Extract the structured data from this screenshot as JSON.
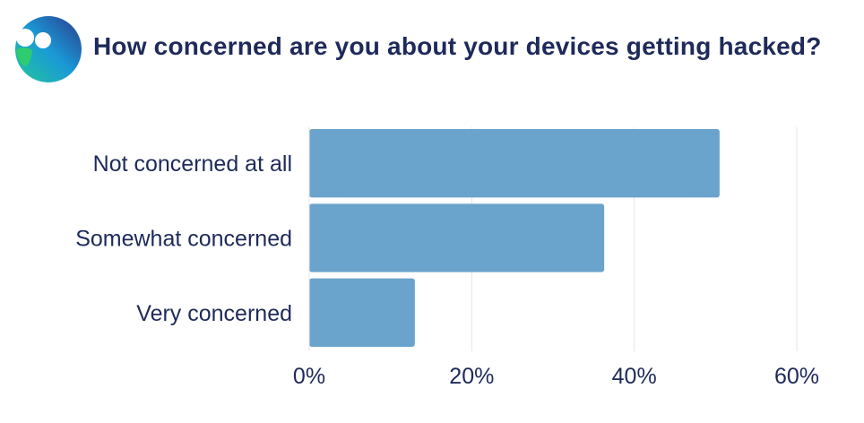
{
  "title": "How concerned are you about your devices getting hacked?",
  "logo": {
    "icon": "brand-logo-icon",
    "colors": {
      "start": "#2ecc71",
      "mid": "#1a9ad6",
      "end": "#2b3a8c"
    }
  },
  "colors": {
    "bar": "#6aa3cc",
    "text": "#1f2a5a",
    "grid": "#e6e6e6"
  },
  "chart_data": {
    "type": "bar",
    "orientation": "horizontal",
    "categories": [
      "Not concerned at all",
      "Somewhat concerned",
      "Very concerned"
    ],
    "values": [
      50.5,
      36.3,
      13.0
    ],
    "xlim": [
      0,
      60
    ],
    "ticks": [
      0,
      20,
      40,
      60
    ],
    "tick_labels": [
      "0%",
      "20%",
      "40%",
      "60%"
    ],
    "grid": true
  }
}
